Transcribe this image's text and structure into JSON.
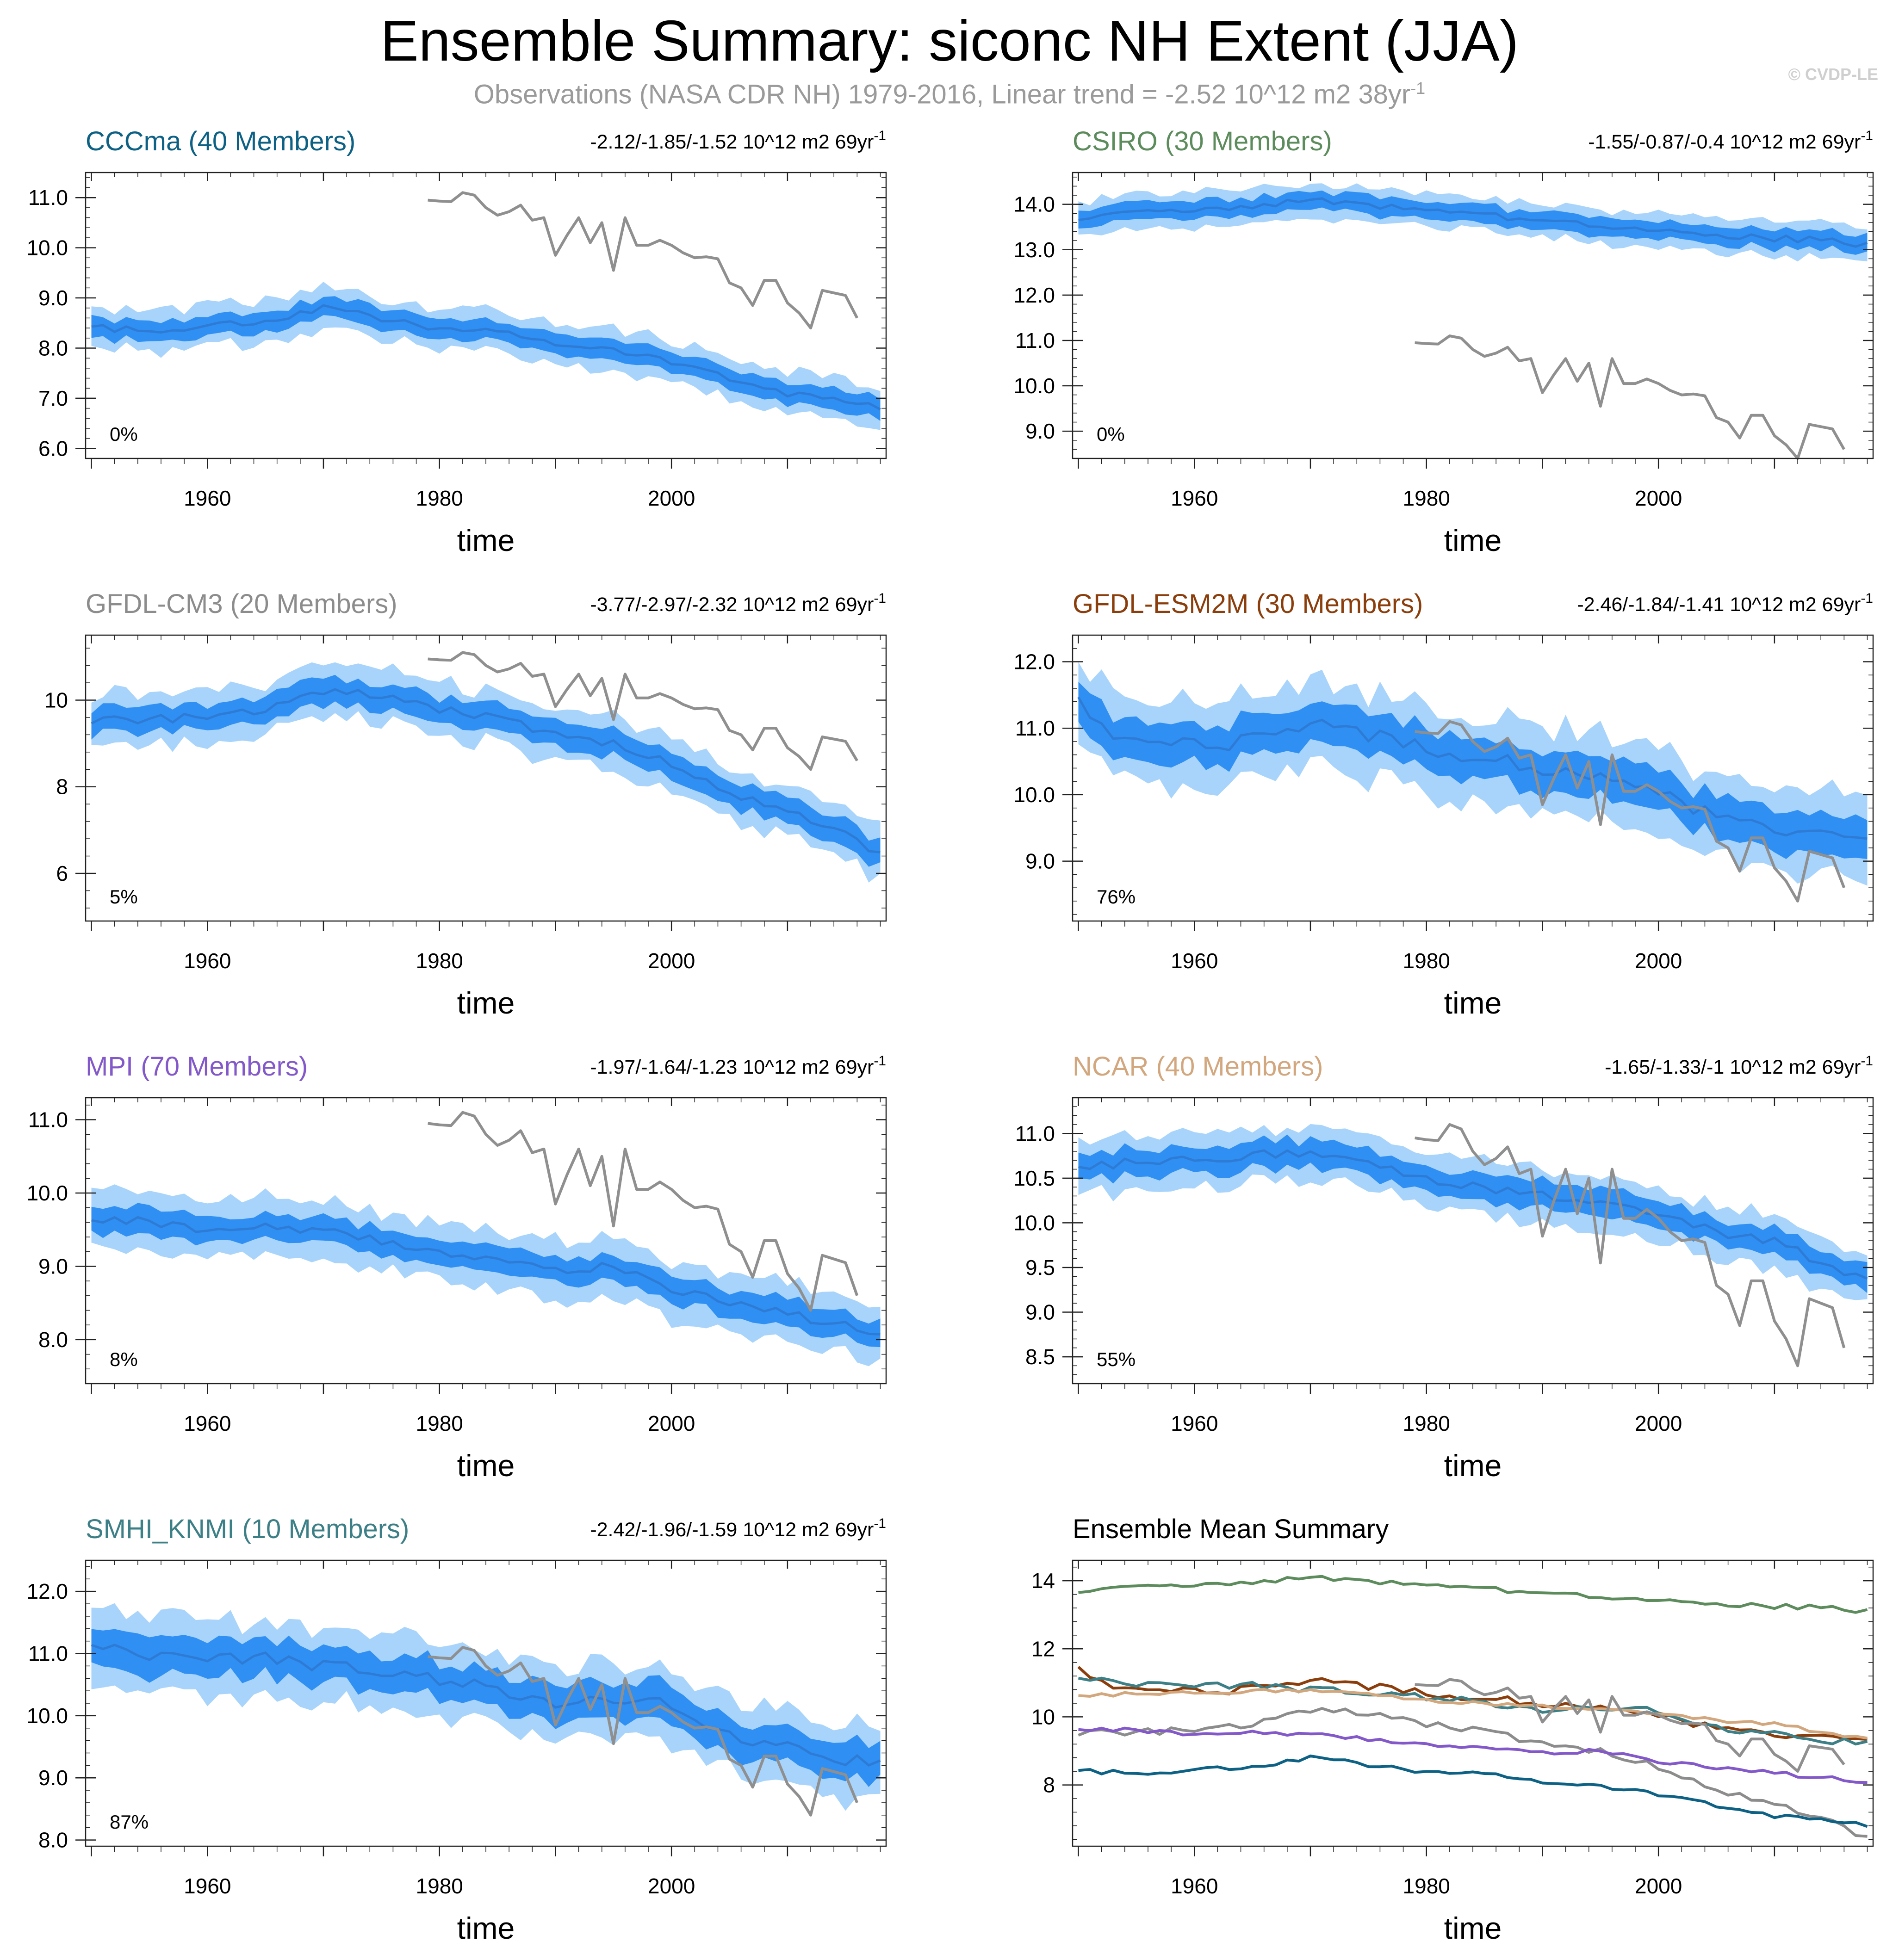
{
  "title": "Ensemble Summary: siconc NH Extent (JJA)",
  "subtitle_main": "Observations (NASA CDR NH) 1979-2016, Linear trend = -2.52 10^12 m2 38yr",
  "subtitle_sup": "-1",
  "copyright": "© CVDP-LE",
  "colors": {
    "band_outer": "#a8d4fb",
    "band_inner": "#2f8ff2",
    "mean_line": "#2e7bd6",
    "obs_line": "#8f8f8f"
  },
  "chart_data": [
    {
      "type": "line",
      "id": "cccma",
      "title": "CCCma (40 Members)",
      "title_color": "#0d6184",
      "trend_text": "-2.12/-1.85/-1.52 10^12 m2 69yr",
      "trend_sup": "-1",
      "pct_label": "0%",
      "xlabel": "time",
      "xlim": [
        1949.5,
        2018.5
      ],
      "ylim": [
        5.8,
        11.5
      ],
      "yticks": [
        6.0,
        7.0,
        8.0,
        9.0,
        10.0,
        11.0
      ],
      "ytick_labels": [
        "6.0",
        "7.0",
        "8.0",
        "9.0",
        "10.0",
        "11.0"
      ],
      "xticks": [
        1960,
        1980,
        2000
      ],
      "mean": {
        "x": [
          1950,
          1955,
          1960,
          1965,
          1970,
          1975,
          1980,
          1985,
          1990,
          1995,
          2000,
          2005,
          2010,
          2015,
          2018
        ],
        "y": [
          8.4,
          8.35,
          8.45,
          8.55,
          8.8,
          8.6,
          8.4,
          8.3,
          8.1,
          8.0,
          7.7,
          7.4,
          7.1,
          6.9,
          6.8
        ]
      },
      "inner_halfwidth": 0.2,
      "outer_halfwidth": 0.42,
      "show_obs": true
    },
    {
      "type": "line",
      "id": "csiro",
      "title": "CSIRO (30 Members)",
      "title_color": "#5c8b5c",
      "trend_text": "-1.55/-0.87/-0.4 10^12 m2 69yr",
      "trend_sup": "-1",
      "pct_label": "0%",
      "xlabel": "time",
      "xlim": [
        1949.5,
        2018.5
      ],
      "ylim": [
        8.4,
        14.7
      ],
      "yticks": [
        9.0,
        10.0,
        11.0,
        12.0,
        13.0,
        14.0
      ],
      "ytick_labels": [
        "9.0",
        "10.0",
        "11.0",
        "12.0",
        "13.0",
        "14.0"
      ],
      "xticks": [
        1960,
        1980,
        2000
      ],
      "mean": {
        "x": [
          1950,
          1955,
          1960,
          1965,
          1970,
          1975,
          1980,
          1985,
          1990,
          1995,
          2000,
          2005,
          2010,
          2015,
          2018
        ],
        "y": [
          13.7,
          13.8,
          13.85,
          13.95,
          14.1,
          14.0,
          13.85,
          13.8,
          13.6,
          13.55,
          13.4,
          13.3,
          13.25,
          13.2,
          13.1
        ]
      },
      "inner_halfwidth": 0.2,
      "outer_halfwidth": 0.38,
      "show_obs": true
    },
    {
      "type": "line",
      "id": "gfdl-cm3",
      "title": "GFDL-CM3 (20 Members)",
      "title_color": "#8c8c8c",
      "trend_text": "-3.77/-2.97/-2.32 10^12 m2 69yr",
      "trend_sup": "-1",
      "pct_label": "5%",
      "xlabel": "time",
      "xlim": [
        1949.5,
        2018.5
      ],
      "ylim": [
        4.9,
        11.5
      ],
      "yticks": [
        6,
        8,
        10
      ],
      "ytick_labels": [
        "6",
        "8",
        "10"
      ],
      "xticks": [
        1960,
        1980,
        2000
      ],
      "mean": {
        "x": [
          1950,
          1955,
          1960,
          1965,
          1970,
          1975,
          1980,
          1985,
          1990,
          1995,
          2000,
          2005,
          2010,
          2015,
          2018
        ],
        "y": [
          9.5,
          9.55,
          9.65,
          9.8,
          10.2,
          10.1,
          9.8,
          9.6,
          9.2,
          9.0,
          8.5,
          7.9,
          7.4,
          7.0,
          6.4
        ]
      },
      "inner_halfwidth": 0.3,
      "outer_halfwidth": 0.6,
      "show_obs": true
    },
    {
      "type": "line",
      "id": "gfdl-esm2m",
      "title": "GFDL-ESM2M (30 Members)",
      "title_color": "#8b3e0c",
      "trend_text": "-2.46/-1.84/-1.41 10^12 m2 69yr",
      "trend_sup": "-1",
      "pct_label": "76%",
      "xlabel": "time",
      "xlim": [
        1949.5,
        2018.5
      ],
      "ylim": [
        8.1,
        12.4
      ],
      "yticks": [
        9.0,
        10.0,
        11.0,
        12.0
      ],
      "ytick_labels": [
        "9.0",
        "10.0",
        "11.0",
        "12.0"
      ],
      "xticks": [
        1960,
        1980,
        2000
      ],
      "mean": {
        "x": [
          1950,
          1953,
          1958,
          1962,
          1966,
          1970,
          1975,
          1980,
          1985,
          1990,
          1995,
          2000,
          2005,
          2010,
          2015,
          2018
        ],
        "y": [
          11.4,
          10.9,
          10.8,
          10.7,
          10.9,
          11.1,
          10.9,
          10.7,
          10.55,
          10.4,
          10.3,
          10.0,
          9.7,
          9.5,
          9.4,
          9.3
        ]
      },
      "inner_halfwidth": 0.3,
      "outer_halfwidth": 0.65,
      "show_obs": true
    },
    {
      "type": "line",
      "id": "mpi",
      "title": "MPI (70 Members)",
      "title_color": "#8359c9",
      "trend_text": "-1.97/-1.64/-1.23 10^12 m2 69yr",
      "trend_sup": "-1",
      "pct_label": "8%",
      "xlabel": "time",
      "xlim": [
        1949.5,
        2018.5
      ],
      "ylim": [
        7.4,
        11.3
      ],
      "yticks": [
        8.0,
        9.0,
        10.0,
        11.0
      ],
      "ytick_labels": [
        "8.0",
        "9.0",
        "10.0",
        "11.0"
      ],
      "xticks": [
        1960,
        1980,
        2000
      ],
      "mean": {
        "x": [
          1950,
          1955,
          1960,
          1965,
          1970,
          1975,
          1980,
          1985,
          1990,
          1995,
          2000,
          2005,
          2010,
          2015,
          2018
        ],
        "y": [
          9.65,
          9.6,
          9.5,
          9.55,
          9.5,
          9.35,
          9.2,
          9.1,
          8.95,
          9.0,
          8.7,
          8.5,
          8.35,
          8.2,
          8.1
        ]
      },
      "inner_halfwidth": 0.18,
      "outer_halfwidth": 0.4,
      "show_obs": true
    },
    {
      "type": "line",
      "id": "ncar",
      "title": "NCAR (40 Members)",
      "title_color": "#d2a77e",
      "trend_text": "-1.65/-1.33/-1 10^12 m2 69yr",
      "trend_sup": "-1",
      "pct_label": "55%",
      "xlabel": "time",
      "xlim": [
        1949.5,
        2018.5
      ],
      "ylim": [
        8.2,
        11.4
      ],
      "yticks": [
        8.5,
        9.0,
        9.5,
        10.0,
        10.5,
        11.0
      ],
      "ytick_labels": [
        "8.5",
        "9.0",
        "9.5",
        "10.0",
        "10.5",
        "11.0"
      ],
      "xticks": [
        1960,
        1980,
        2000
      ],
      "mean": {
        "x": [
          1950,
          1955,
          1960,
          1965,
          1970,
          1975,
          1980,
          1985,
          1990,
          1995,
          2000,
          2005,
          2010,
          2015,
          2018
        ],
        "y": [
          10.6,
          10.7,
          10.7,
          10.75,
          10.8,
          10.7,
          10.5,
          10.4,
          10.3,
          10.25,
          10.1,
          9.9,
          9.8,
          9.5,
          9.35
        ]
      },
      "inner_halfwidth": 0.15,
      "outer_halfwidth": 0.3,
      "show_obs": true
    },
    {
      "type": "line",
      "id": "smhi-knmi",
      "title": "SMHI_KNMI (10 Members)",
      "title_color": "#3c7f86",
      "trend_text": "-2.42/-1.96/-1.59 10^12 m2 69yr",
      "trend_sup": "-1",
      "pct_label": "87%",
      "xlabel": "time",
      "xlim": [
        1949.5,
        2018.5
      ],
      "ylim": [
        7.9,
        12.5
      ],
      "yticks": [
        8.0,
        9.0,
        10.0,
        11.0,
        12.0
      ],
      "ytick_labels": [
        "8.0",
        "9.0",
        "10.0",
        "11.0",
        "12.0"
      ],
      "xticks": [
        1960,
        1980,
        2000
      ],
      "mean": {
        "x": [
          1950,
          1955,
          1960,
          1965,
          1970,
          1975,
          1980,
          1985,
          1990,
          1995,
          2000,
          2005,
          2010,
          2015,
          2018
        ],
        "y": [
          11.2,
          11.0,
          10.9,
          10.95,
          10.8,
          10.7,
          10.6,
          10.4,
          10.2,
          10.3,
          10.2,
          9.7,
          9.5,
          9.3,
          9.2
        ]
      },
      "inner_halfwidth": 0.3,
      "outer_halfwidth": 0.6,
      "show_obs": true
    },
    {
      "type": "line",
      "id": "summary",
      "title": "Ensemble Mean Summary",
      "title_color": "#000000",
      "trend_text": "",
      "trend_sup": "",
      "pct_label": "",
      "xlabel": "time",
      "xlim": [
        1949.5,
        2018.5
      ],
      "ylim": [
        6.2,
        14.6
      ],
      "yticks": [
        8,
        10,
        12,
        14
      ],
      "ytick_labels": [
        "8",
        "10",
        "12",
        "14"
      ],
      "xticks": [
        1960,
        1980,
        2000
      ],
      "series": [
        {
          "name": "CSIRO",
          "color": "#5c8b5c",
          "ref": "csiro"
        },
        {
          "name": "GFDL-ESM2M",
          "color": "#8b3e0c",
          "ref": "gfdl-esm2m"
        },
        {
          "name": "SMHI_KNMI",
          "color": "#3c7f86",
          "ref": "smhi-knmi"
        },
        {
          "name": "NCAR",
          "color": "#d2a77e",
          "ref": "ncar"
        },
        {
          "name": "GFDL-CM3",
          "color": "#8c8c8c",
          "ref": "gfdl-cm3"
        },
        {
          "name": "MPI",
          "color": "#8359c9",
          "ref": "mpi"
        },
        {
          "name": "CCCma",
          "color": "#0d6184",
          "ref": "cccma"
        }
      ],
      "show_obs": true
    }
  ],
  "observations": {
    "name": "NASA CDR NH",
    "x": [
      1979,
      1980,
      1981,
      1982,
      1983,
      1984,
      1985,
      1986,
      1987,
      1988,
      1989,
      1990,
      1991,
      1992,
      1993,
      1994,
      1995,
      1996,
      1997,
      1998,
      1999,
      2000,
      2001,
      2002,
      2003,
      2004,
      2005,
      2006,
      2007,
      2008,
      2009,
      2010,
      2011,
      2012,
      2013,
      2014,
      2015,
      2016
    ],
    "y": [
      10.95,
      10.93,
      10.92,
      11.1,
      11.05,
      10.8,
      10.65,
      10.72,
      10.85,
      10.55,
      10.6,
      9.85,
      10.25,
      10.6,
      10.1,
      10.5,
      9.55,
      10.6,
      10.05,
      10.05,
      10.15,
      10.05,
      9.9,
      9.8,
      9.82,
      9.78,
      9.3,
      9.2,
      8.85,
      9.35,
      9.35,
      8.9,
      8.7,
      8.4,
      9.15,
      9.1,
      9.05,
      8.6
    ]
  }
}
